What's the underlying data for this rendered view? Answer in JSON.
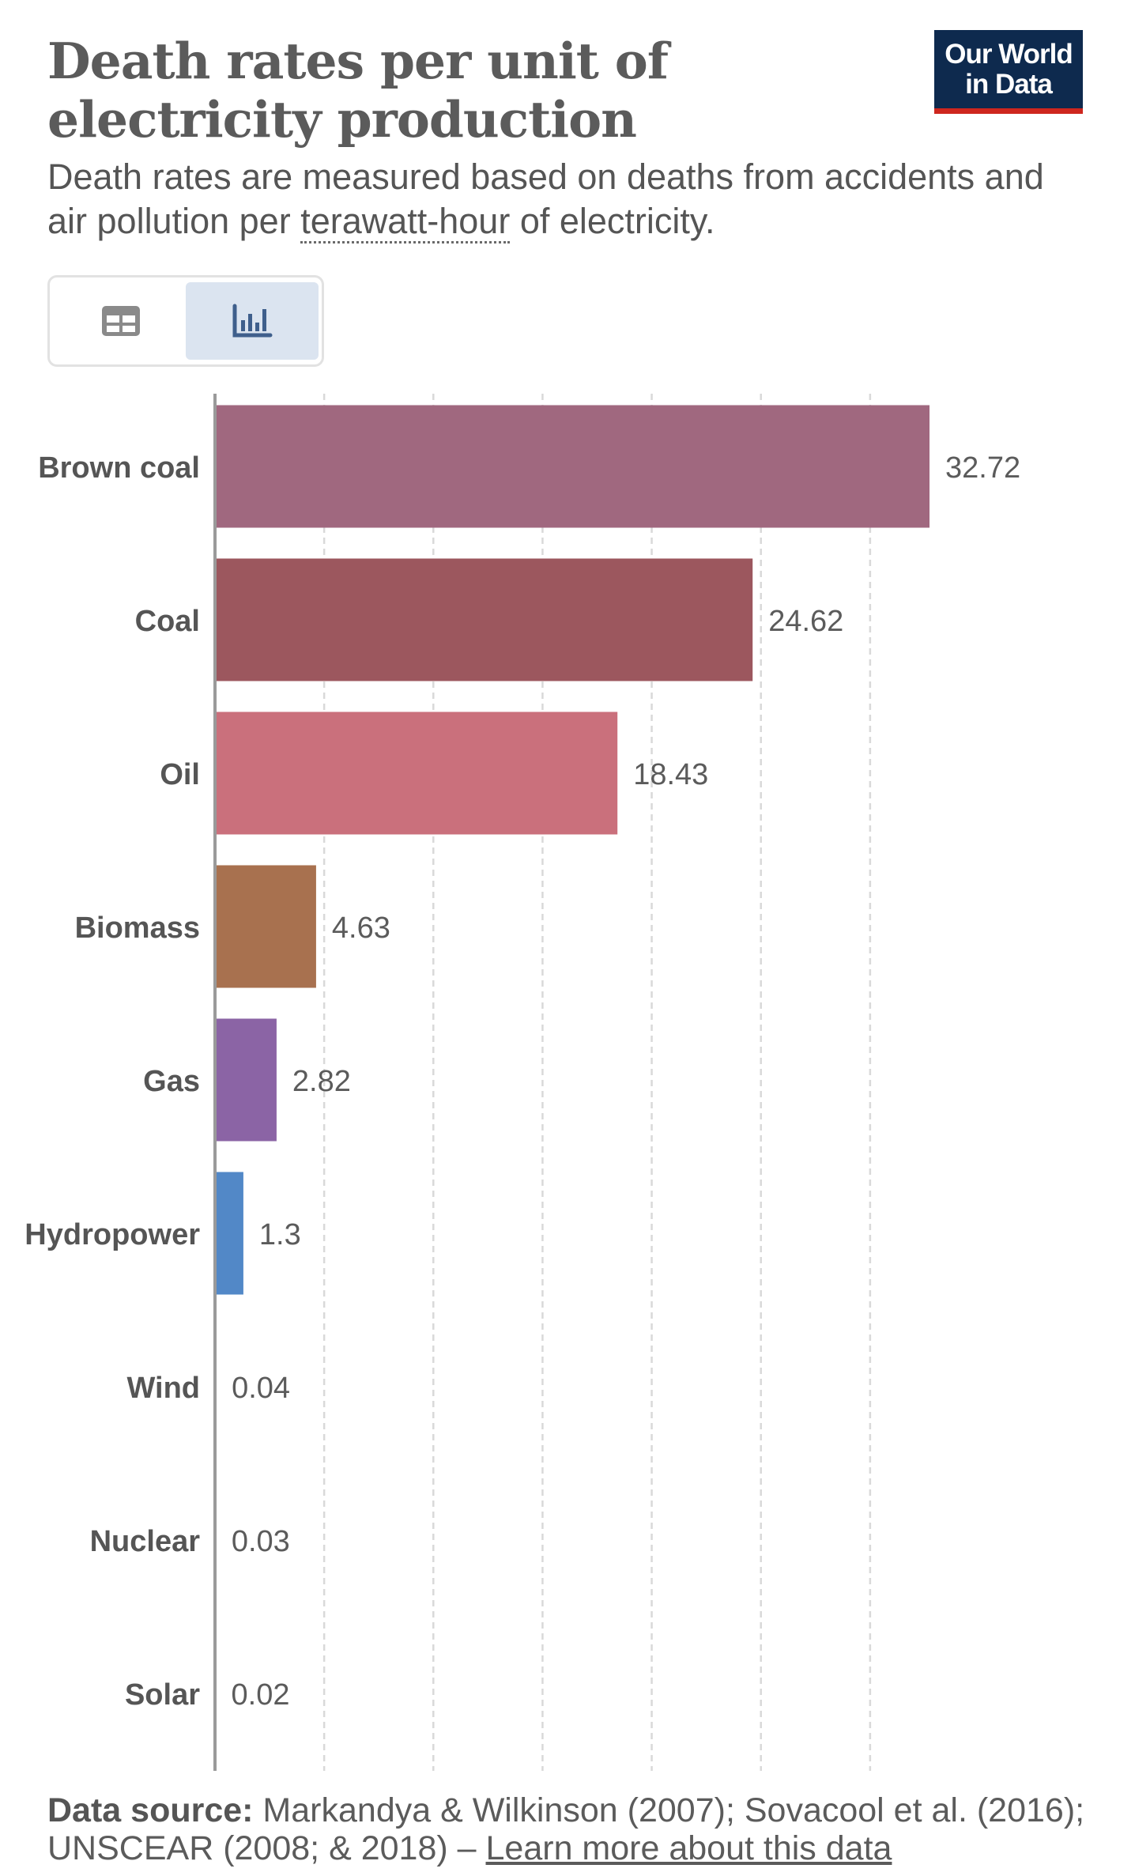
{
  "header": {
    "title": "Death rates per unit of electricity production",
    "subtitle_part1": "Death rates are measured based on deaths from accidents and air pollution per ",
    "subtitle_link": "terawatt-hour",
    "subtitle_part2": " of electricity.",
    "logo_line1": "Our World",
    "logo_line2": "in Data"
  },
  "toggle": {
    "table_icon": "table-icon",
    "chart_icon": "bar-chart-icon",
    "active": "chart"
  },
  "footer": {
    "source_label": "Data source:",
    "source_text": " Markandya & Wilkinson (2007); Sovacool et al. (2016); UNSCEAR (2008; & 2018) – ",
    "learn_more": "Learn more about this data"
  },
  "chart_data": {
    "type": "bar",
    "orientation": "horizontal",
    "categories": [
      "Brown coal",
      "Coal",
      "Oil",
      "Biomass",
      "Gas",
      "Hydropower",
      "Wind",
      "Nuclear",
      "Solar"
    ],
    "values": [
      32.72,
      24.62,
      18.43,
      4.63,
      2.82,
      1.3,
      0.04,
      0.03,
      0.02
    ],
    "value_labels": [
      "32.72",
      "24.62",
      "18.43",
      "4.63",
      "2.82",
      "1.3",
      "0.04",
      "0.03",
      "0.02"
    ],
    "colors": [
      "#a0687f",
      "#9c575e",
      "#ca707c",
      "#a8714f",
      "#8b64a5",
      "#5288c7",
      "#4e9c8f",
      "#b9c13c",
      "#e0a542"
    ],
    "xlim": [
      0,
      35
    ],
    "grid": true,
    "x_tick_labels_shown": false
  }
}
